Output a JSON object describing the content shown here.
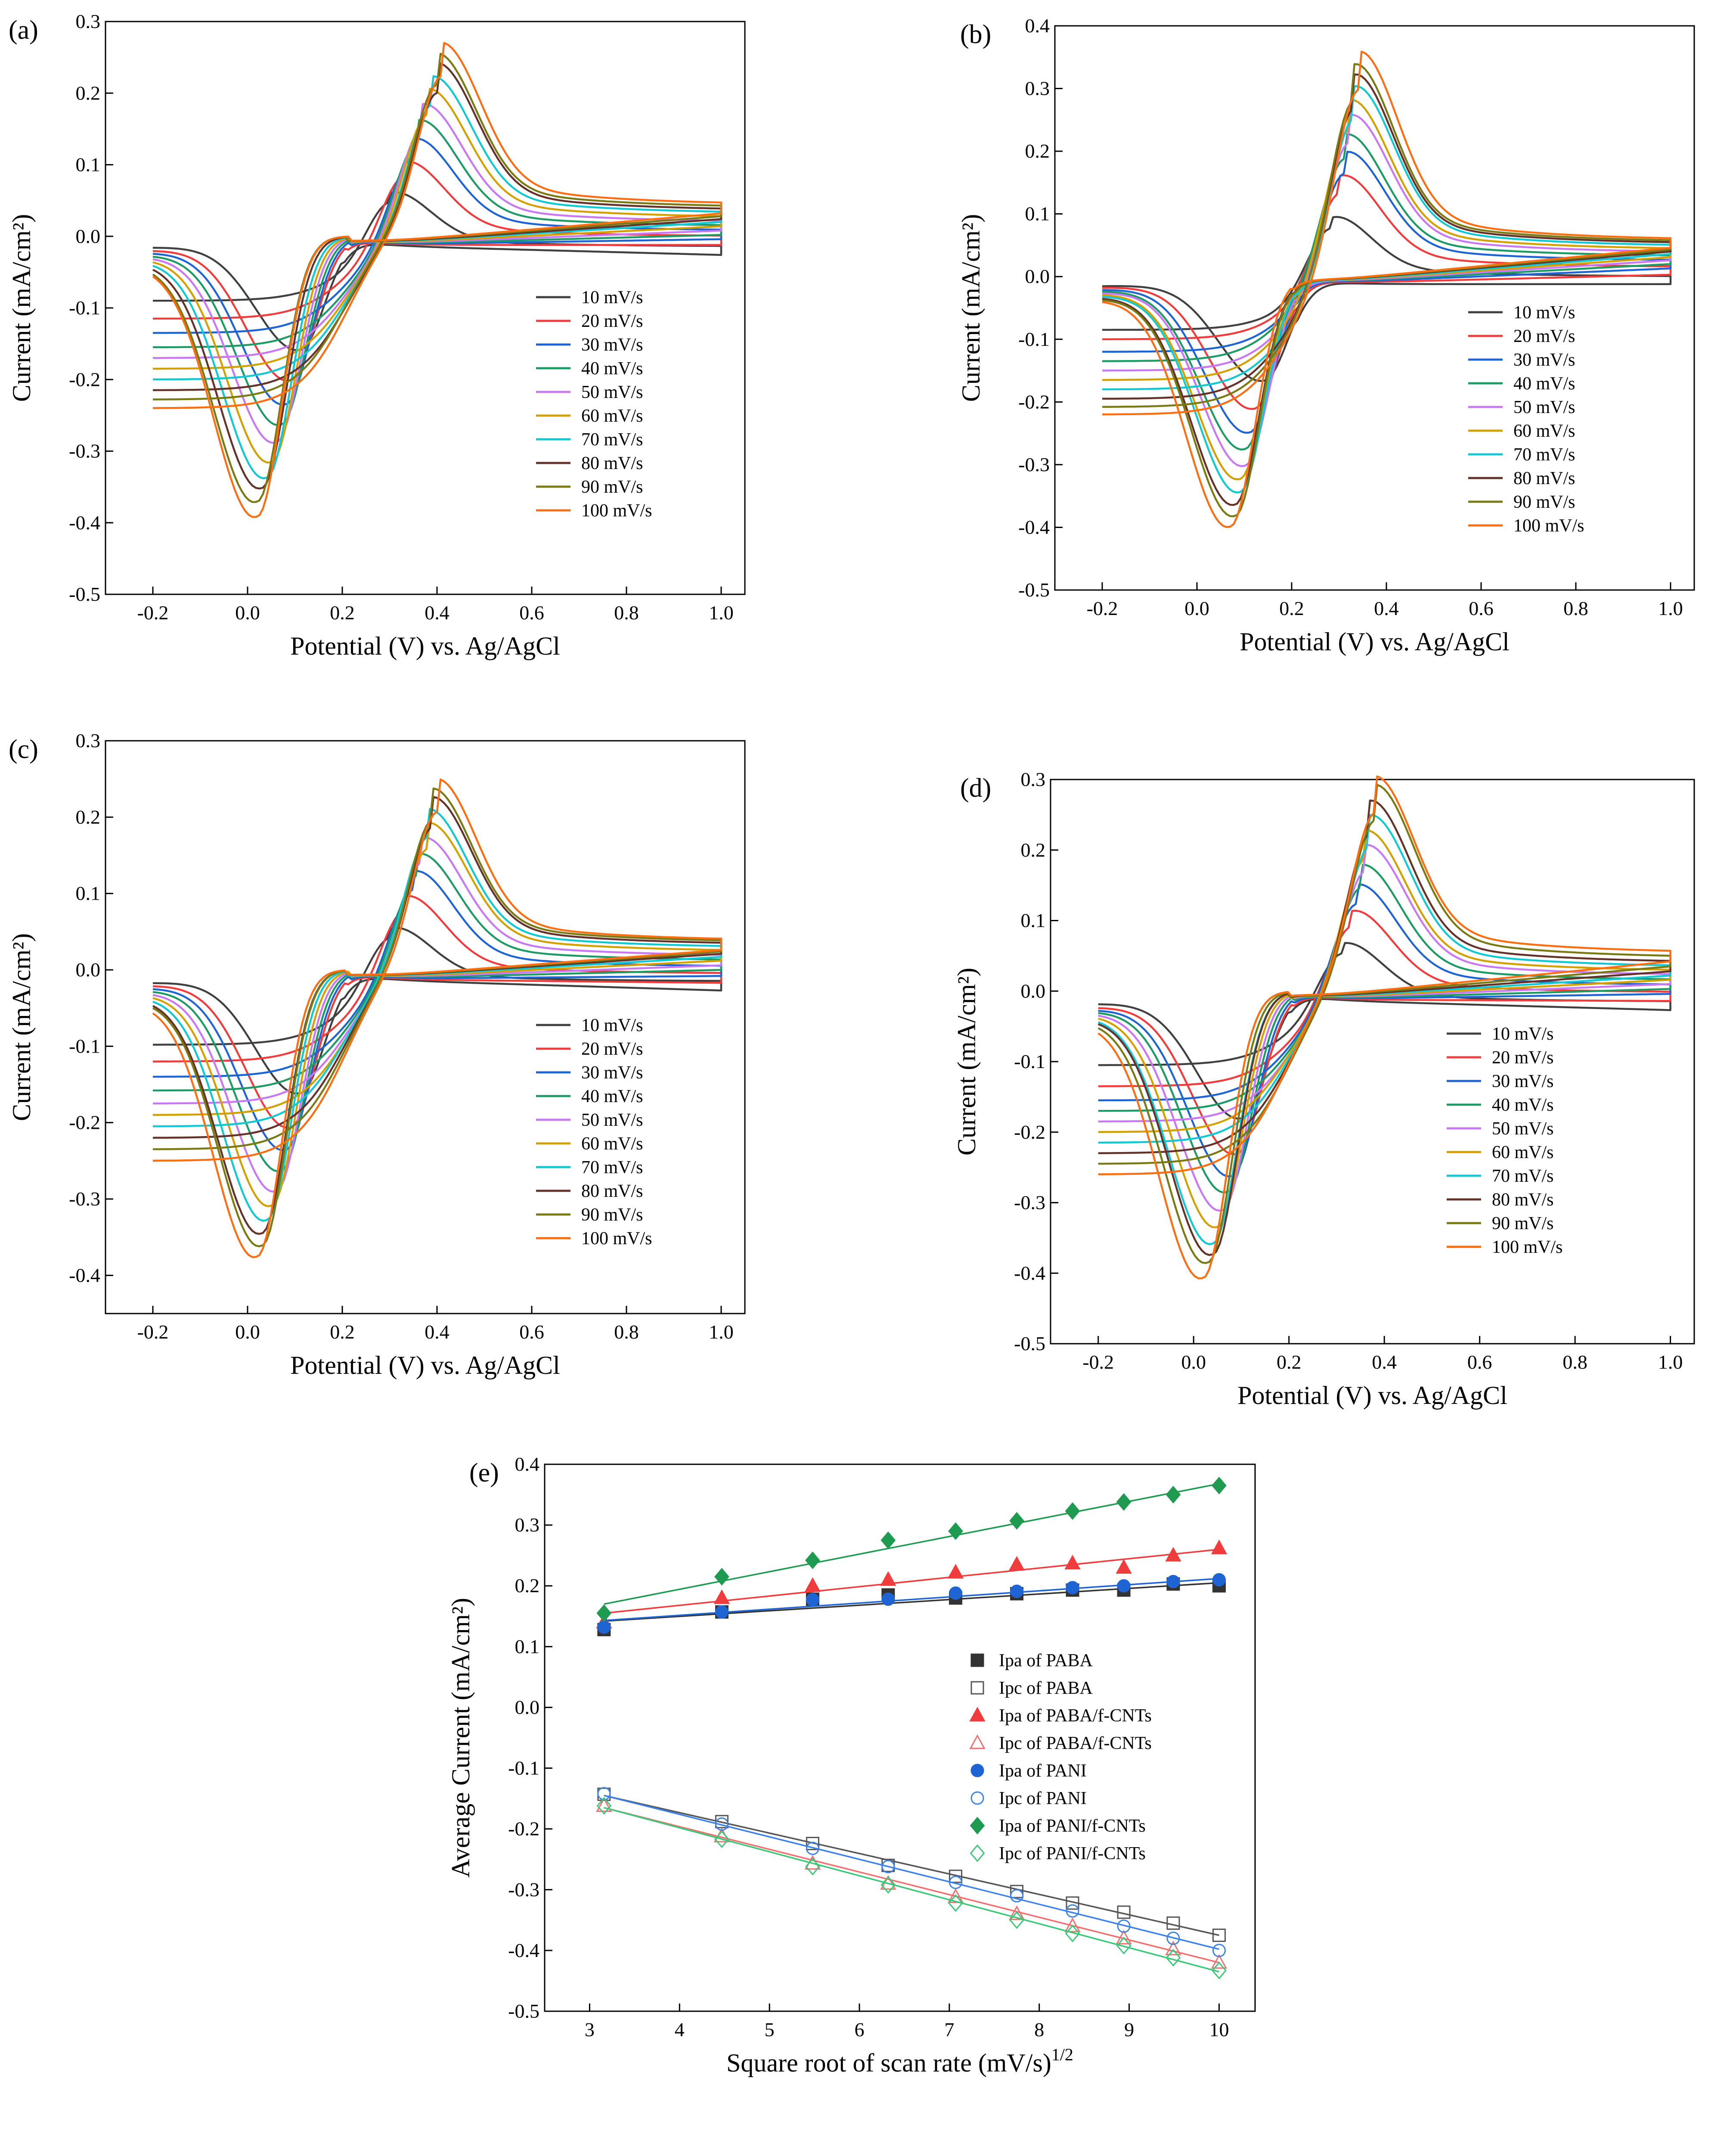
{
  "chart_data": [
    {
      "type": "line",
      "panel_label": "(a)",
      "xlabel": "Potential (V) vs. Ag/AgCl",
      "ylabel": "Current (mA/cm²)",
      "xlim": [
        -0.3,
        1.05
      ],
      "ylim": [
        -0.5,
        0.3
      ],
      "xticks": [
        -0.2,
        0.0,
        0.2,
        0.4,
        0.6,
        0.8,
        1.0
      ],
      "xtick_labels": [
        "-0.2",
        "0.0",
        "0.2",
        "0.4",
        "0.6",
        "0.8",
        "1.0"
      ],
      "yticks": [
        -0.5,
        -0.4,
        -0.3,
        -0.2,
        -0.1,
        0.0,
        0.1,
        0.2,
        0.3
      ],
      "ytick_labels": [
        "-0.5",
        "-0.4",
        "-0.3",
        "-0.2",
        "-0.1",
        "0.0",
        "0.1",
        "0.2",
        "0.3"
      ],
      "grid": false,
      "legend_position": "lower-right",
      "cv_params": {
        "E_start": -0.2,
        "E_end": 1.0,
        "Ec": 0.2
      },
      "series": [
        {
          "name": "10 mV/s",
          "color": "#404040",
          "ipa": 0.078,
          "epa": 0.3,
          "ipc": -0.167,
          "epc": 0.11,
          "start_current": -0.09,
          "end_current": -0.014
        },
        {
          "name": "20 mV/s",
          "color": "#f03c3c",
          "ipa": 0.113,
          "epa": 0.33,
          "ipc": -0.212,
          "epc": 0.09,
          "start_current": -0.115,
          "end_current": 0.0
        },
        {
          "name": "30 mV/s",
          "color": "#1e64d2",
          "ipa": 0.14,
          "epa": 0.35,
          "ipc": -0.247,
          "epc": 0.08,
          "start_current": -0.135,
          "end_current": 0.008
        },
        {
          "name": "40 mV/s",
          "color": "#1e9b64",
          "ipa": 0.162,
          "epa": 0.36,
          "ipc": -0.277,
          "epc": 0.07,
          "start_current": -0.155,
          "end_current": 0.014
        },
        {
          "name": "50 mV/s",
          "color": "#c878f0",
          "ipa": 0.18,
          "epa": 0.37,
          "ipc": -0.303,
          "epc": 0.06,
          "start_current": -0.17,
          "end_current": 0.02
        },
        {
          "name": "60 mV/s",
          "color": "#d2a000",
          "ipa": 0.197,
          "epa": 0.38,
          "ipc": -0.332,
          "epc": 0.05,
          "start_current": -0.185,
          "end_current": 0.026
        },
        {
          "name": "70 mV/s",
          "color": "#14c8d2",
          "ipa": 0.21,
          "epa": 0.39,
          "ipc": -0.355,
          "epc": 0.04,
          "start_current": -0.2,
          "end_current": 0.032
        },
        {
          "name": "80 mV/s",
          "color": "#643228",
          "ipa": 0.225,
          "epa": 0.4,
          "ipc": -0.37,
          "epc": 0.03,
          "start_current": -0.215,
          "end_current": 0.036
        },
        {
          "name": "90 mV/s",
          "color": "#7a7a14",
          "ipa": 0.236,
          "epa": 0.4,
          "ipc": -0.39,
          "epc": 0.02,
          "start_current": -0.228,
          "end_current": 0.04
        },
        {
          "name": "100 mV/s",
          "color": "#fa6e14",
          "ipa": 0.248,
          "epa": 0.41,
          "ipc": -0.412,
          "epc": 0.02,
          "start_current": -0.24,
          "end_current": 0.044
        }
      ]
    },
    {
      "type": "line",
      "panel_label": "(b)",
      "xlabel": "Potential (V) vs. Ag/AgCl",
      "ylabel": "Current (mA/cm²)",
      "xlim": [
        -0.3,
        1.05
      ],
      "ylim": [
        -0.5,
        0.4
      ],
      "xticks": [
        -0.2,
        0.0,
        0.2,
        0.4,
        0.6,
        0.8,
        1.0
      ],
      "xtick_labels": [
        "-0.2",
        "0.0",
        "0.2",
        "0.4",
        "0.6",
        "0.8",
        "1.0"
      ],
      "yticks": [
        -0.5,
        -0.4,
        -0.3,
        -0.2,
        -0.1,
        0.0,
        0.1,
        0.2,
        0.3,
        0.4
      ],
      "ytick_labels": [
        "-0.5",
        "-0.4",
        "-0.3",
        "-0.2",
        "-0.1",
        "0.0",
        "0.1",
        "0.2",
        "0.3",
        "0.4"
      ],
      "grid": false,
      "legend_position": "lower-right",
      "cv_params": {
        "E_start": -0.2,
        "E_end": 1.0,
        "Ec": 0.2
      },
      "series": [
        {
          "name": "10 mV/s",
          "color": "#404040",
          "ipa": 0.112,
          "epa": 0.28,
          "ipc": -0.175,
          "epc": 0.14,
          "start_current": -0.085,
          "end_current": 0.0
        },
        {
          "name": "20 mV/s",
          "color": "#f03c3c",
          "ipa": 0.17,
          "epa": 0.3,
          "ipc": -0.222,
          "epc": 0.12,
          "start_current": -0.1,
          "end_current": 0.015
        },
        {
          "name": "30 mV/s",
          "color": "#1e64d2",
          "ipa": 0.203,
          "epa": 0.31,
          "ipc": -0.262,
          "epc": 0.11,
          "start_current": -0.12,
          "end_current": 0.025
        },
        {
          "name": "40 mV/s",
          "color": "#1e9b64",
          "ipa": 0.228,
          "epa": 0.31,
          "ipc": -0.29,
          "epc": 0.1,
          "start_current": -0.135,
          "end_current": 0.032
        },
        {
          "name": "50 mV/s",
          "color": "#c878f0",
          "ipa": 0.256,
          "epa": 0.32,
          "ipc": -0.318,
          "epc": 0.1,
          "start_current": -0.15,
          "end_current": 0.038
        },
        {
          "name": "60 mV/s",
          "color": "#d2a000",
          "ipa": 0.277,
          "epa": 0.32,
          "ipc": -0.34,
          "epc": 0.09,
          "start_current": -0.165,
          "end_current": 0.043
        },
        {
          "name": "70 mV/s",
          "color": "#14c8d2",
          "ipa": 0.296,
          "epa": 0.33,
          "ipc": -0.362,
          "epc": 0.09,
          "start_current": -0.18,
          "end_current": 0.048
        },
        {
          "name": "80 mV/s",
          "color": "#643228",
          "ipa": 0.312,
          "epa": 0.33,
          "ipc": -0.383,
          "epc": 0.08,
          "start_current": -0.195,
          "end_current": 0.052
        },
        {
          "name": "90 mV/s",
          "color": "#7a7a14",
          "ipa": 0.328,
          "epa": 0.33,
          "ipc": -0.402,
          "epc": 0.08,
          "start_current": -0.208,
          "end_current": 0.055
        },
        {
          "name": "100 mV/s",
          "color": "#fa6e14",
          "ipa": 0.343,
          "epa": 0.34,
          "ipc": -0.42,
          "epc": 0.07,
          "start_current": -0.22,
          "end_current": 0.058
        }
      ]
    },
    {
      "type": "line",
      "panel_label": "(c)",
      "xlabel": "Potential (V) vs. Ag/AgCl",
      "ylabel": "Current (mA/cm²)",
      "xlim": [
        -0.3,
        1.05
      ],
      "ylim": [
        -0.45,
        0.3
      ],
      "xticks": [
        -0.2,
        0.0,
        0.2,
        0.4,
        0.6,
        0.8,
        1.0
      ],
      "xtick_labels": [
        "-0.2",
        "0.0",
        "0.2",
        "0.4",
        "0.6",
        "0.8",
        "1.0"
      ],
      "yticks": [
        -0.4,
        -0.3,
        -0.2,
        -0.1,
        0.0,
        0.1,
        0.2,
        0.3
      ],
      "ytick_labels": [
        "-0.4",
        "-0.3",
        "-0.2",
        "-0.1",
        "0.0",
        "0.1",
        "0.2",
        "0.3"
      ],
      "grid": false,
      "legend_position": "lower-right",
      "cv_params": {
        "E_start": -0.2,
        "E_end": 1.0,
        "Ec": 0.2
      },
      "series": [
        {
          "name": "10 mV/s",
          "color": "#404040",
          "ipa": 0.073,
          "epa": 0.3,
          "ipc": -0.17,
          "epc": 0.11,
          "start_current": -0.098,
          "end_current": -0.015
        },
        {
          "name": "20 mV/s",
          "color": "#f03c3c",
          "ipa": 0.108,
          "epa": 0.33,
          "ipc": -0.217,
          "epc": 0.09,
          "start_current": -0.12,
          "end_current": -0.005
        },
        {
          "name": "30 mV/s",
          "color": "#1e64d2",
          "ipa": 0.135,
          "epa": 0.35,
          "ipc": -0.248,
          "epc": 0.08,
          "start_current": -0.14,
          "end_current": 0.004
        },
        {
          "name": "40 mV/s",
          "color": "#1e9b64",
          "ipa": 0.153,
          "epa": 0.36,
          "ipc": -0.277,
          "epc": 0.07,
          "start_current": -0.158,
          "end_current": 0.012
        },
        {
          "name": "50 mV/s",
          "color": "#c878f0",
          "ipa": 0.17,
          "epa": 0.37,
          "ipc": -0.305,
          "epc": 0.06,
          "start_current": -0.175,
          "end_current": 0.018
        },
        {
          "name": "60 mV/s",
          "color": "#d2a000",
          "ipa": 0.185,
          "epa": 0.38,
          "ipc": -0.325,
          "epc": 0.05,
          "start_current": -0.19,
          "end_current": 0.024
        },
        {
          "name": "70 mV/s",
          "color": "#14c8d2",
          "ipa": 0.2,
          "epa": 0.38,
          "ipc": -0.345,
          "epc": 0.04,
          "start_current": -0.205,
          "end_current": 0.029
        },
        {
          "name": "80 mV/s",
          "color": "#643228",
          "ipa": 0.212,
          "epa": 0.39,
          "ipc": -0.363,
          "epc": 0.03,
          "start_current": -0.22,
          "end_current": 0.033
        },
        {
          "name": "90 mV/s",
          "color": "#7a7a14",
          "ipa": 0.222,
          "epa": 0.39,
          "ipc": -0.38,
          "epc": 0.03,
          "start_current": -0.235,
          "end_current": 0.036
        },
        {
          "name": "100 mV/s",
          "color": "#fa6e14",
          "ipa": 0.232,
          "epa": 0.4,
          "ipc": -0.395,
          "epc": 0.02,
          "start_current": -0.25,
          "end_current": 0.038
        }
      ]
    },
    {
      "type": "line",
      "panel_label": "(d)",
      "xlabel": "Potential (V) vs. Ag/AgCl",
      "ylabel": "Current (mA/cm²)",
      "xlim": [
        -0.3,
        1.05
      ],
      "ylim": [
        -0.5,
        0.3
      ],
      "xticks": [
        -0.2,
        0.0,
        0.2,
        0.4,
        0.6,
        0.8,
        1.0
      ],
      "xtick_labels": [
        "-0.2",
        "0.0",
        "0.2",
        "0.4",
        "0.6",
        "0.8",
        "1.0"
      ],
      "yticks": [
        -0.5,
        -0.4,
        -0.3,
        -0.2,
        -0.1,
        0.0,
        0.1,
        0.2,
        0.3
      ],
      "ytick_labels": [
        "-0.5",
        "-0.4",
        "-0.3",
        "-0.2",
        "-0.1",
        "0.0",
        "0.1",
        "0.2",
        "0.3"
      ],
      "grid": false,
      "legend_position": "lower-right",
      "cv_params": {
        "E_start": -0.2,
        "E_end": 1.0,
        "Ec": 0.2
      },
      "series": [
        {
          "name": "10 mV/s",
          "color": "#404040",
          "ipa": 0.085,
          "epa": 0.31,
          "ipc": -0.19,
          "epc": 0.1,
          "start_current": -0.105,
          "end_current": -0.015
        },
        {
          "name": "20 mV/s",
          "color": "#f03c3c",
          "ipa": 0.125,
          "epa": 0.33,
          "ipc": -0.243,
          "epc": 0.09,
          "start_current": -0.135,
          "end_current": -0.002
        },
        {
          "name": "30 mV/s",
          "color": "#1e64d2",
          "ipa": 0.157,
          "epa": 0.34,
          "ipc": -0.276,
          "epc": 0.08,
          "start_current": -0.155,
          "end_current": 0.008
        },
        {
          "name": "40 mV/s",
          "color": "#1e9b64",
          "ipa": 0.18,
          "epa": 0.35,
          "ipc": -0.3,
          "epc": 0.07,
          "start_current": -0.17,
          "end_current": 0.015
        },
        {
          "name": "50 mV/s",
          "color": "#c878f0",
          "ipa": 0.203,
          "epa": 0.36,
          "ipc": -0.327,
          "epc": 0.06,
          "start_current": -0.185,
          "end_current": 0.022
        },
        {
          "name": "60 mV/s",
          "color": "#d2a000",
          "ipa": 0.22,
          "epa": 0.36,
          "ipc": -0.352,
          "epc": 0.05,
          "start_current": -0.2,
          "end_current": 0.028
        },
        {
          "name": "70 mV/s",
          "color": "#14c8d2",
          "ipa": 0.237,
          "epa": 0.37,
          "ipc": -0.377,
          "epc": 0.04,
          "start_current": -0.215,
          "end_current": 0.034
        },
        {
          "name": "80 mV/s",
          "color": "#643228",
          "ipa": 0.255,
          "epa": 0.37,
          "ipc": -0.393,
          "epc": 0.04,
          "start_current": -0.23,
          "end_current": 0.04
        },
        {
          "name": "90 mV/s",
          "color": "#7a7a14",
          "ipa": 0.272,
          "epa": 0.38,
          "ipc": -0.405,
          "epc": 0.03,
          "start_current": -0.245,
          "end_current": 0.047
        },
        {
          "name": "100 mV/s",
          "color": "#fa6e14",
          "ipa": 0.28,
          "epa": 0.38,
          "ipc": -0.428,
          "epc": 0.02,
          "start_current": -0.26,
          "end_current": 0.054
        }
      ]
    },
    {
      "type": "scatter",
      "panel_label": "(e)",
      "xlabel": "Square root of scan rate (mV/s)",
      "xlabel_superscript": "1/2",
      "ylabel": "Average Current (mA/cm²)",
      "xlim": [
        2.5,
        10.4
      ],
      "ylim": [
        -0.5,
        0.4
      ],
      "xticks": [
        3,
        4,
        5,
        6,
        7,
        8,
        9,
        10
      ],
      "xtick_labels": [
        "3",
        "4",
        "5",
        "6",
        "7",
        "8",
        "9",
        "10"
      ],
      "yticks": [
        -0.5,
        -0.4,
        -0.3,
        -0.2,
        -0.1,
        0.0,
        0.1,
        0.2,
        0.3,
        0.4
      ],
      "ytick_labels": [
        "-0.5",
        "-0.4",
        "-0.3",
        "-0.2",
        "-0.1",
        "0.0",
        "0.1",
        "0.2",
        "0.3",
        "0.4"
      ],
      "grid": false,
      "legend_position": "center-right",
      "x": [
        3.16,
        4.47,
        5.48,
        6.32,
        7.07,
        7.75,
        8.37,
        8.94,
        9.49,
        10.0
      ],
      "series": [
        {
          "name": "Ipa of PABA",
          "color": "#333333",
          "marker": "square-filled",
          "values": [
            0.128,
            0.157,
            0.178,
            0.185,
            0.18,
            0.187,
            0.193,
            0.193,
            0.203,
            0.2
          ],
          "fit": [
            0.142,
            0.205
          ]
        },
        {
          "name": "Ipc of PABA",
          "color": "#555555",
          "marker": "square-open",
          "values": [
            -0.143,
            -0.188,
            -0.224,
            -0.26,
            -0.278,
            -0.303,
            -0.322,
            -0.337,
            -0.355,
            -0.375
          ],
          "fit": [
            -0.145,
            -0.375
          ]
        },
        {
          "name": "Ipa of PABA/f-CNTs",
          "color": "#f03c3c",
          "marker": "triangle-filled",
          "values": [
            0.14,
            0.18,
            0.2,
            0.21,
            0.222,
            0.235,
            0.237,
            0.23,
            0.25,
            0.262
          ],
          "fit": [
            0.155,
            0.26
          ]
        },
        {
          "name": "Ipc of PABA/f-CNTs",
          "color": "#f07070",
          "marker": "triangle-open",
          "values": [
            -0.162,
            -0.212,
            -0.257,
            -0.29,
            -0.312,
            -0.34,
            -0.36,
            -0.38,
            -0.398,
            -0.42
          ],
          "fit": [
            -0.165,
            -0.42
          ]
        },
        {
          "name": "Ipa of PANI",
          "color": "#1e64d2",
          "marker": "circle-filled",
          "values": [
            0.132,
            0.157,
            0.177,
            0.178,
            0.188,
            0.191,
            0.197,
            0.2,
            0.207,
            0.21
          ],
          "fit": [
            0.143,
            0.212
          ]
        },
        {
          "name": "Ipc of PANI",
          "color": "#3c82e6",
          "marker": "circle-open",
          "values": [
            -0.142,
            -0.192,
            -0.232,
            -0.262,
            -0.288,
            -0.31,
            -0.335,
            -0.36,
            -0.38,
            -0.4
          ],
          "fit": [
            -0.145,
            -0.398
          ]
        },
        {
          "name": "Ipa of PANI/f-CNTs",
          "color": "#1e9b50",
          "marker": "diamond-filled",
          "values": [
            0.155,
            0.215,
            0.242,
            0.275,
            0.29,
            0.307,
            0.323,
            0.338,
            0.35,
            0.365
          ],
          "fit": [
            0.17,
            0.368
          ]
        },
        {
          "name": "Ipc of PANI/f-CNTs",
          "color": "#3cc878",
          "marker": "diamond-open",
          "values": [
            -0.162,
            -0.217,
            -0.262,
            -0.292,
            -0.322,
            -0.35,
            -0.372,
            -0.392,
            -0.412,
            -0.433
          ],
          "fit": [
            -0.165,
            -0.435
          ]
        }
      ]
    }
  ]
}
